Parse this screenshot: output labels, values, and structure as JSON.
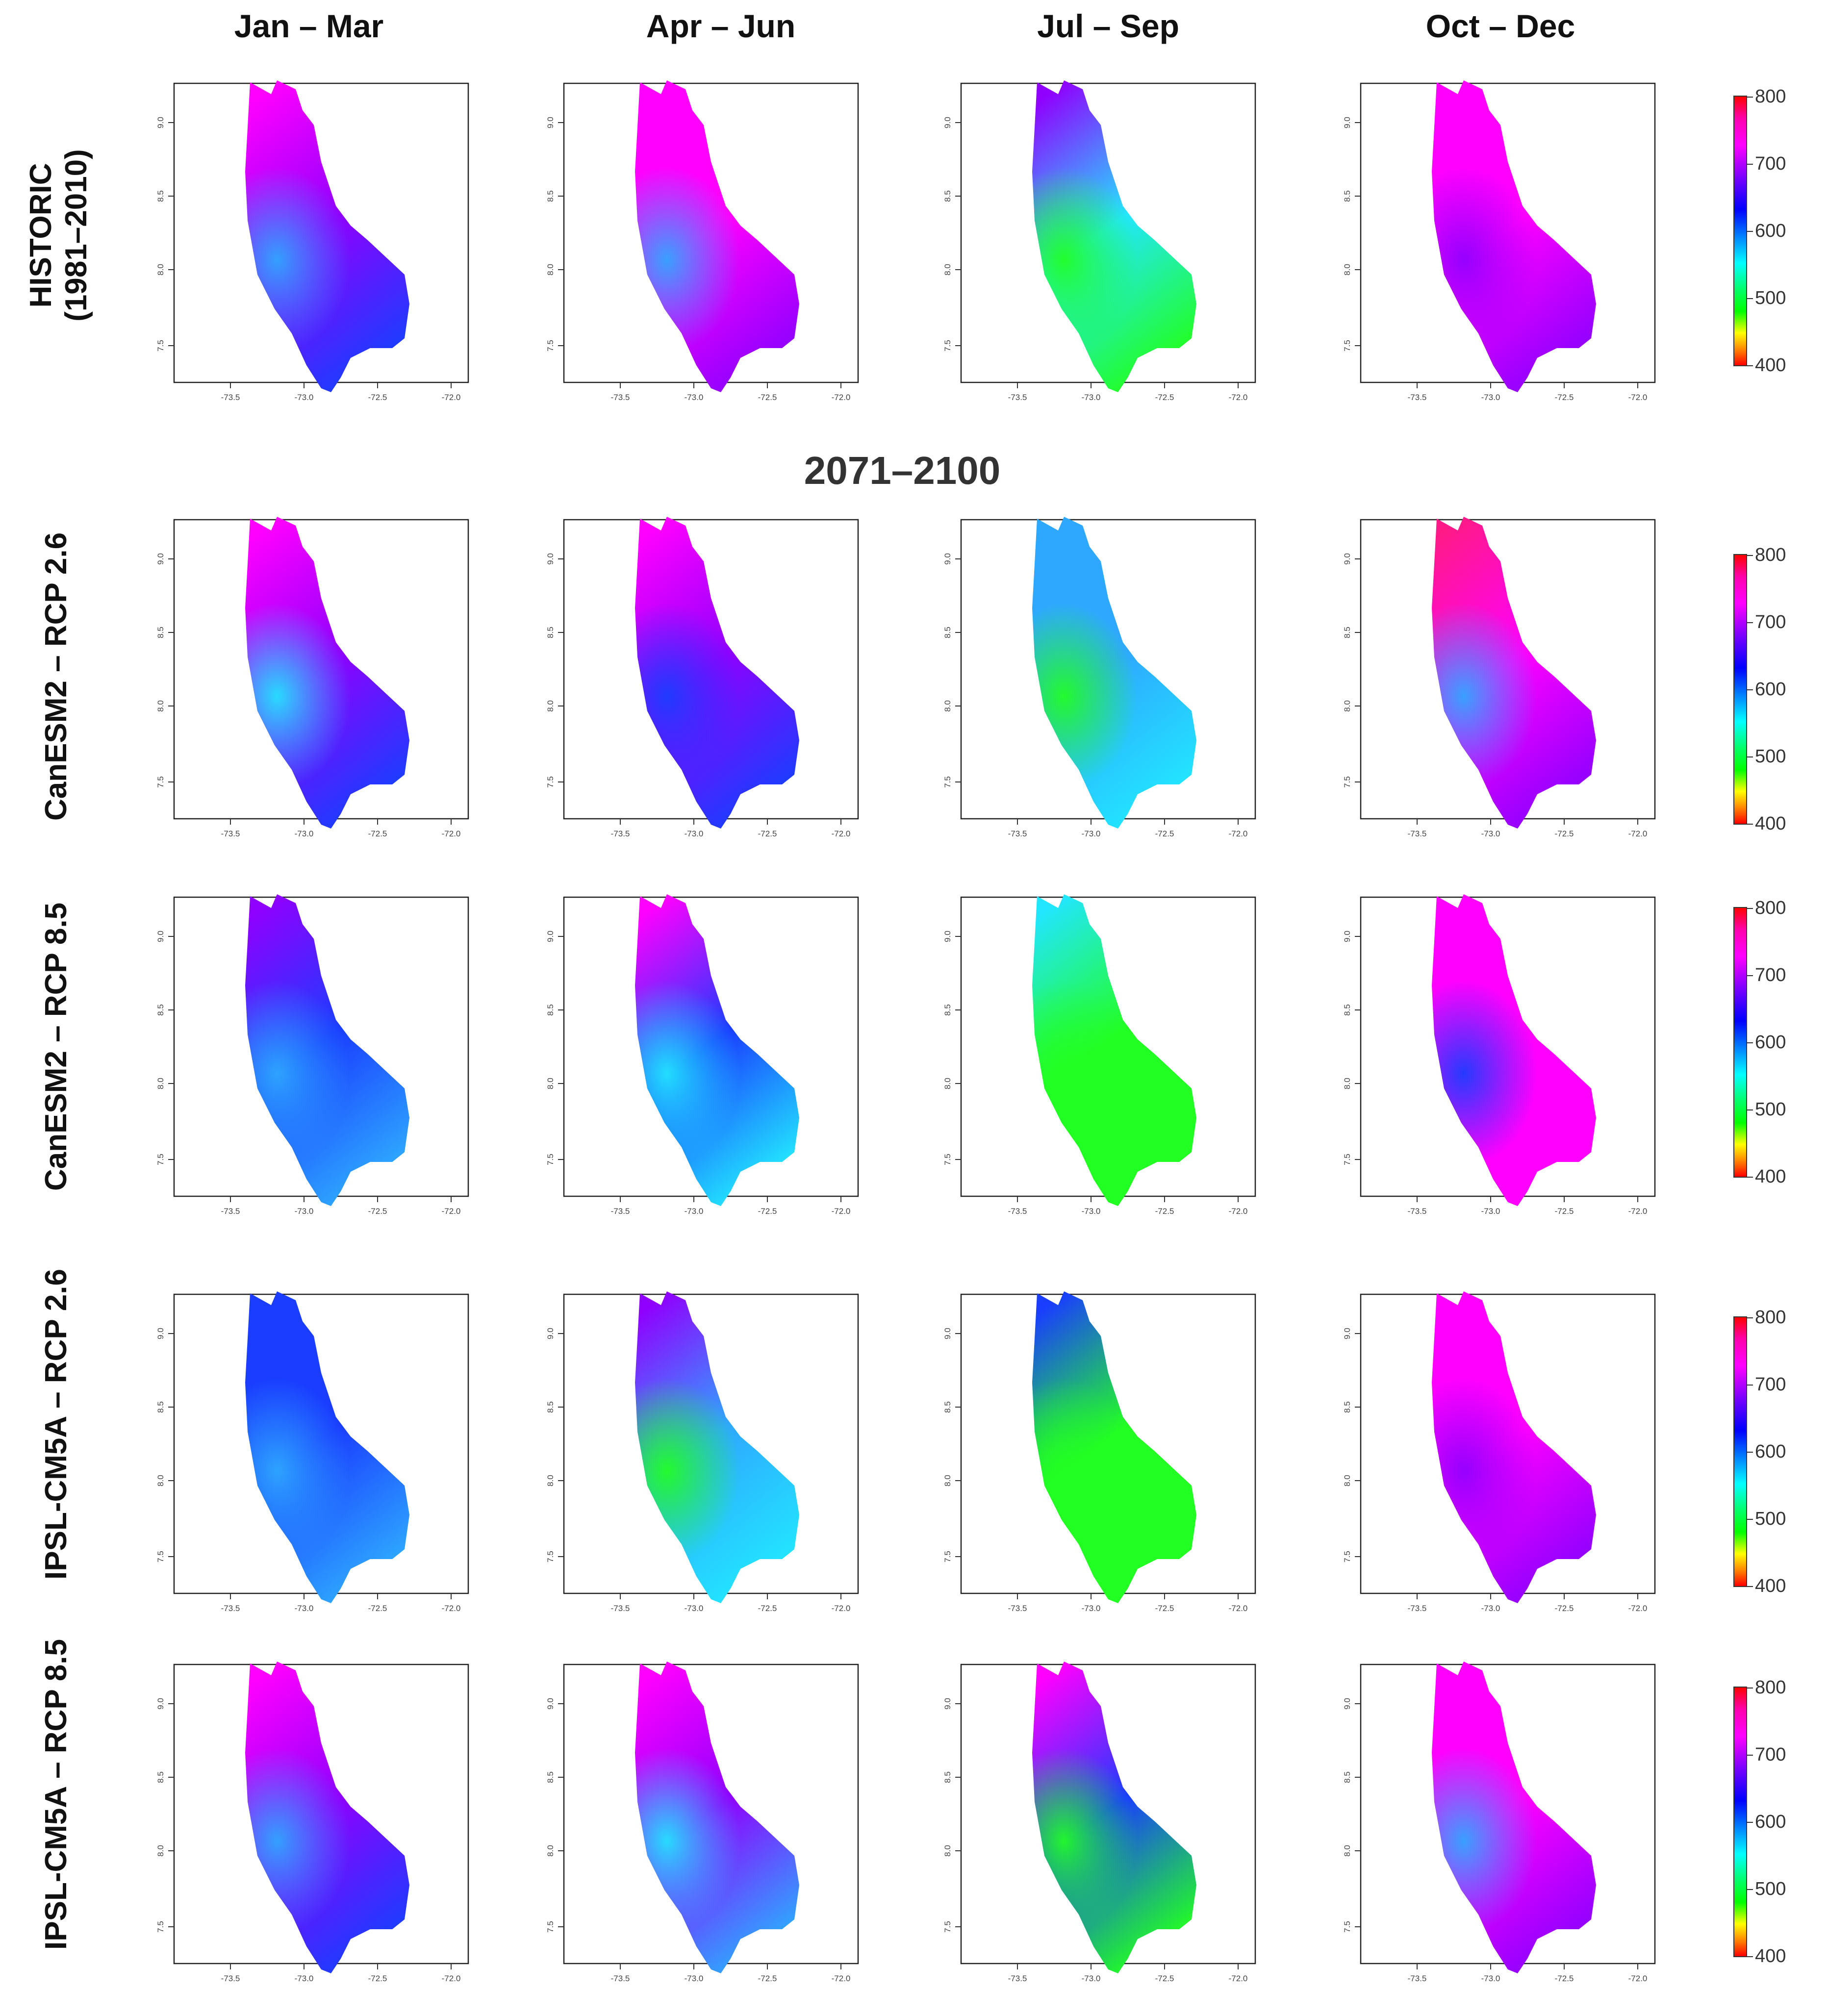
{
  "columns": [
    "Jan – Mar",
    "Apr – Jun",
    "Jul – Sep",
    "Oct – Dec"
  ],
  "rows": [
    {
      "label": "HISTORIC\n(1981–2010)",
      "line1": "HISTORIC",
      "line2": "(1981–2010)"
    },
    {
      "line1": "CanESM2 – RCP 2.6",
      "line2": ""
    },
    {
      "line1": "CanESM2 – RCP 8.5",
      "line2": ""
    },
    {
      "line1": "IPSL-CM5A – RCP 2.6",
      "line2": ""
    },
    {
      "line1": "IPSL-CM5A – RCP 8.5",
      "line2": ""
    }
  ],
  "section_title": "2071–2100",
  "colorbar": {
    "labels": [
      "800",
      "700",
      "600",
      "500",
      "400"
    ]
  },
  "axis": {
    "x_ticks": [
      "-73.5",
      "-73.0",
      "-72.5",
      "-72.0"
    ],
    "y_ticks": [
      "9.0",
      "8.5",
      "8.0",
      "7.5"
    ]
  },
  "colors": {
    "magenta": "#ff00ff",
    "violet": "#9000ff",
    "blue": "#1a3dff",
    "sky": "#2ea8ff",
    "cyan": "#22e6ff",
    "green": "#22ff22",
    "pink": "#ff1a88"
  },
  "panels": [
    [
      {
        "grad": [
          "magenta",
          "violet",
          "blue"
        ],
        "patch": "sky"
      },
      {
        "grad": [
          "magenta",
          "magenta",
          "violet"
        ],
        "patch": "sky"
      },
      {
        "grad": [
          "violet",
          "cyan",
          "green"
        ],
        "patch": "green"
      },
      {
        "grad": [
          "magenta",
          "magenta",
          "violet"
        ],
        "patch": "violet"
      }
    ],
    [
      {
        "grad": [
          "magenta",
          "violet",
          "blue"
        ],
        "patch": "cyan"
      },
      {
        "grad": [
          "magenta",
          "violet",
          "blue"
        ],
        "patch": "blue"
      },
      {
        "grad": [
          "sky",
          "sky",
          "cyan"
        ],
        "patch": "green"
      },
      {
        "grad": [
          "pink",
          "magenta",
          "violet"
        ],
        "patch": "sky"
      }
    ],
    [
      {
        "grad": [
          "violet",
          "blue",
          "sky"
        ],
        "patch": "sky"
      },
      {
        "grad": [
          "magenta",
          "blue",
          "cyan"
        ],
        "patch": "cyan"
      },
      {
        "grad": [
          "cyan",
          "green",
          "green"
        ],
        "patch": "green"
      },
      {
        "grad": [
          "magenta",
          "magenta",
          "magenta"
        ],
        "patch": "blue"
      }
    ],
    [
      {
        "grad": [
          "blue",
          "blue",
          "sky"
        ],
        "patch": "sky"
      },
      {
        "grad": [
          "violet",
          "sky",
          "cyan"
        ],
        "patch": "green"
      },
      {
        "grad": [
          "blue",
          "green",
          "green"
        ],
        "patch": "green"
      },
      {
        "grad": [
          "magenta",
          "magenta",
          "violet"
        ],
        "patch": "violet"
      }
    ],
    [
      {
        "grad": [
          "magenta",
          "violet",
          "blue"
        ],
        "patch": "sky"
      },
      {
        "grad": [
          "magenta",
          "violet",
          "sky"
        ],
        "patch": "cyan"
      },
      {
        "grad": [
          "magenta",
          "blue",
          "green"
        ],
        "patch": "green"
      },
      {
        "grad": [
          "magenta",
          "magenta",
          "violet"
        ],
        "patch": "sky"
      }
    ]
  ]
}
